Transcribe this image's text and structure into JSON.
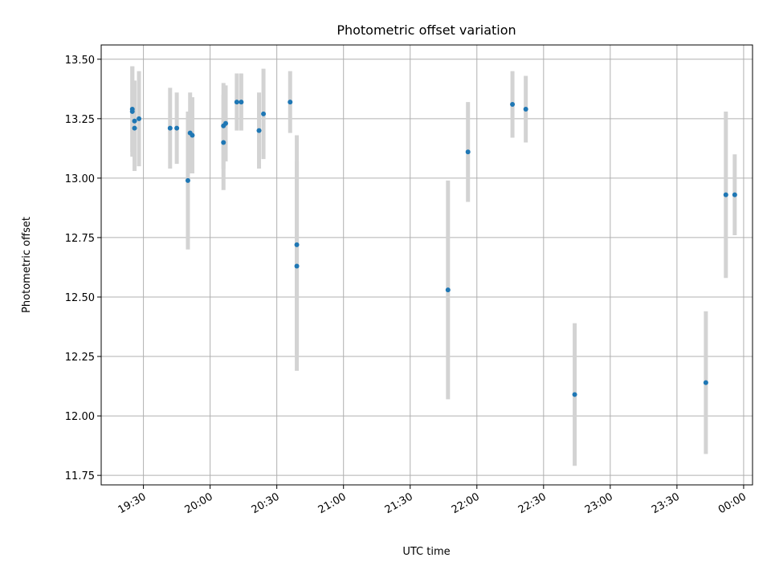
{
  "chart_data": {
    "type": "scatter",
    "title": "Photometric offset variation",
    "xlabel": "UTC time",
    "ylabel": "Photometric offset",
    "grid": true,
    "legend": "none",
    "x_ticks": [
      "19:30",
      "20:00",
      "20:30",
      "21:00",
      "21:30",
      "22:00",
      "22:30",
      "23:00",
      "23:30",
      "00:00"
    ],
    "x_tick_minutes": [
      1170,
      1200,
      1230,
      1260,
      1290,
      1320,
      1350,
      1380,
      1410,
      1440
    ],
    "y_ticks": [
      "11.75",
      "12.00",
      "12.25",
      "12.50",
      "12.75",
      "13.00",
      "13.25",
      "13.50"
    ],
    "y_tick_values": [
      11.75,
      12.0,
      12.25,
      12.5,
      12.75,
      13.0,
      13.25,
      13.5
    ],
    "xlim": [
      "19:11",
      "00:04"
    ],
    "ylim": [
      11.71,
      13.56
    ],
    "colors": {
      "point": "#1f77b4",
      "errorbar": "#d3d3d3",
      "grid": "#b0b0b0"
    },
    "points": [
      {
        "time": "19:25",
        "y": 13.29,
        "err": 0.18
      },
      {
        "time": "19:25",
        "y": 13.28,
        "err": 0.19
      },
      {
        "time": "19:26",
        "y": 13.24,
        "err": 0.17
      },
      {
        "time": "19:26",
        "y": 13.21,
        "err": 0.18
      },
      {
        "time": "19:28",
        "y": 13.25,
        "err": 0.2
      },
      {
        "time": "19:42",
        "y": 13.21,
        "err": 0.17
      },
      {
        "time": "19:45",
        "y": 13.21,
        "err": 0.15
      },
      {
        "time": "19:50",
        "y": 12.99,
        "err": 0.29
      },
      {
        "time": "19:51",
        "y": 13.19,
        "err": 0.17
      },
      {
        "time": "19:52",
        "y": 13.18,
        "err": 0.16
      },
      {
        "time": "20:06",
        "y": 13.15,
        "err": 0.2
      },
      {
        "time": "20:06",
        "y": 13.22,
        "err": 0.18
      },
      {
        "time": "20:07",
        "y": 13.23,
        "err": 0.16
      },
      {
        "time": "20:12",
        "y": 13.32,
        "err": 0.12
      },
      {
        "time": "20:14",
        "y": 13.32,
        "err": 0.12
      },
      {
        "time": "20:22",
        "y": 13.2,
        "err": 0.16
      },
      {
        "time": "20:24",
        "y": 13.27,
        "err": 0.19
      },
      {
        "time": "20:36",
        "y": 13.32,
        "err": 0.13
      },
      {
        "time": "20:39",
        "y": 12.72,
        "err": 0.46
      },
      {
        "time": "20:39",
        "y": 12.63,
        "err": 0.44
      },
      {
        "time": "21:47",
        "y": 12.53,
        "err": 0.46
      },
      {
        "time": "21:56",
        "y": 13.11,
        "err": 0.21
      },
      {
        "time": "22:16",
        "y": 13.31,
        "err": 0.14
      },
      {
        "time": "22:22",
        "y": 13.29,
        "err": 0.14
      },
      {
        "time": "22:44",
        "y": 12.09,
        "err": 0.3
      },
      {
        "time": "23:43",
        "y": 12.14,
        "err": 0.3
      },
      {
        "time": "23:52",
        "y": 12.93,
        "err": 0.35
      },
      {
        "time": "23:56",
        "y": 12.93,
        "err": 0.17
      }
    ]
  }
}
